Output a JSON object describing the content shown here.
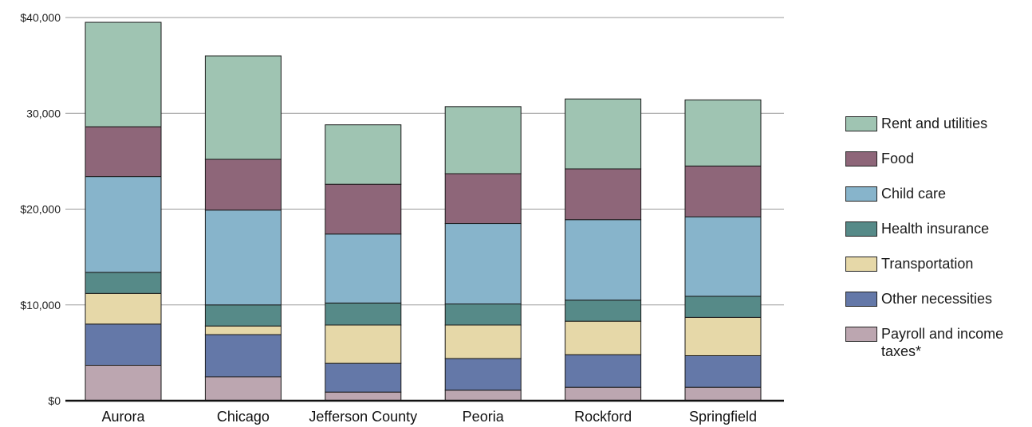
{
  "chart_data": {
    "type": "bar",
    "stacked": true,
    "categories": [
      "Aurora",
      "Chicago",
      "Jefferson County",
      "Peoria",
      "Rockford",
      "Springfield"
    ],
    "series": [
      {
        "name": "Payroll and income taxes*",
        "color": "#bca6b0",
        "values": [
          3700,
          2500,
          900,
          1100,
          1400,
          1400
        ]
      },
      {
        "name": "Other necessities",
        "color": "#6478a8",
        "values": [
          4300,
          4400,
          3000,
          3300,
          3400,
          3300
        ]
      },
      {
        "name": "Transportation",
        "color": "#e6d8a8",
        "values": [
          3200,
          900,
          4000,
          3500,
          3500,
          4000
        ]
      },
      {
        "name": "Health insurance",
        "color": "#568a88",
        "values": [
          2200,
          2200,
          2300,
          2200,
          2200,
          2200
        ]
      },
      {
        "name": "Child care",
        "color": "#87b4cb",
        "values": [
          10000,
          9900,
          7200,
          8400,
          8400,
          8300
        ]
      },
      {
        "name": "Food",
        "color": "#8e6679",
        "values": [
          5200,
          5300,
          5200,
          5200,
          5300,
          5300
        ]
      },
      {
        "name": "Rent and utilities",
        "color": "#9fc4b2",
        "values": [
          10900,
          10800,
          6200,
          7000,
          7300,
          6900
        ]
      }
    ],
    "ylim": [
      0,
      40000
    ],
    "yticks": [
      {
        "value": 0,
        "label": "$0"
      },
      {
        "value": 10000,
        "label": "$10,000"
      },
      {
        "value": 20000,
        "label": "$20,000"
      },
      {
        "value": 30000,
        "label": "30,000"
      },
      {
        "value": 40000,
        "label": "$40,000"
      }
    ],
    "grid": true,
    "legend_position": "right"
  },
  "legend": {
    "items": [
      {
        "label": "Rent and utilities",
        "color": "#9fc4b2"
      },
      {
        "label": "Food",
        "color": "#8e6679"
      },
      {
        "label": "Child care",
        "color": "#87b4cb"
      },
      {
        "label": "Health insurance",
        "color": "#568a88"
      },
      {
        "label": "Transportation",
        "color": "#e6d8a8"
      },
      {
        "label": "Other necessities",
        "color": "#6478a8"
      },
      {
        "label": "Payroll and income taxes*",
        "color": "#bca6b0"
      }
    ]
  }
}
